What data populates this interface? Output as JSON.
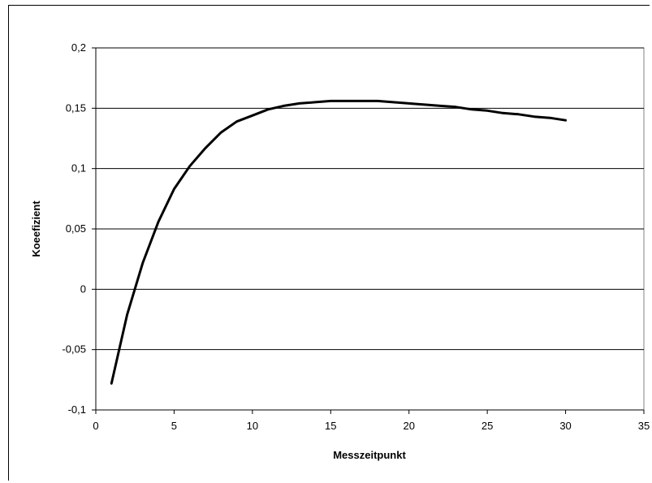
{
  "chart_data": {
    "type": "line",
    "title": "",
    "xlabel": "Messzeitpunkt",
    "ylabel": "Koeefizient",
    "xlim": [
      0,
      35
    ],
    "ylim": [
      -0.1,
      0.2
    ],
    "x_ticks": [
      0,
      5,
      10,
      15,
      20,
      25,
      30,
      35
    ],
    "x_tick_labels": [
      "0",
      "5",
      "10",
      "15",
      "20",
      "25",
      "30",
      "35"
    ],
    "y_ticks": [
      -0.1,
      -0.05,
      0,
      0.05,
      0.1,
      0.15,
      0.2
    ],
    "y_tick_labels": [
      "-0,1",
      "-0,05",
      "0",
      "0,05",
      "0,1",
      "0,15",
      "0,2"
    ],
    "grid": "horizontal",
    "legend": "none",
    "series": [
      {
        "color": "#000000",
        "x": [
          1,
          2,
          3,
          4,
          5,
          6,
          7,
          8,
          9,
          10,
          11,
          12,
          13,
          14,
          15,
          16,
          17,
          18,
          19,
          20,
          21,
          22,
          23,
          24,
          25,
          26,
          27,
          28,
          29,
          30
        ],
        "y": [
          -0.078,
          -0.021,
          0.022,
          0.056,
          0.083,
          0.102,
          0.117,
          0.13,
          0.139,
          0.144,
          0.149,
          0.152,
          0.154,
          0.155,
          0.156,
          0.156,
          0.156,
          0.156,
          0.155,
          0.154,
          0.153,
          0.152,
          0.151,
          0.149,
          0.148,
          0.146,
          0.145,
          0.143,
          0.142,
          0.14
        ]
      }
    ]
  }
}
